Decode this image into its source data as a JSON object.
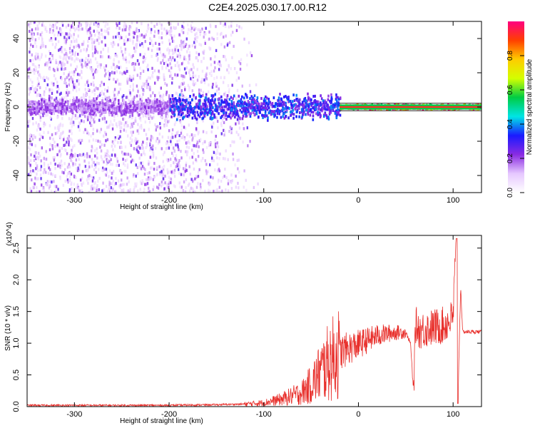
{
  "title": "C2E4.2025.030.17.00.R12",
  "colors": {
    "snr_line": "#e8302c",
    "axis": "#000000"
  },
  "chart_data": [
    {
      "type": "heatmap",
      "xlabel": "Height of straight line (km)",
      "ylabel": "Frequency (Hz)",
      "xlim": [
        -350,
        130
      ],
      "ylim": [
        -50,
        50
      ],
      "x_ticks": [
        -300,
        -200,
        -100,
        0,
        100
      ],
      "y_ticks": [
        -40,
        -20,
        0,
        20,
        40
      ],
      "colorbar": {
        "label": "Normalized spectral amplitude",
        "range": [
          0,
          1
        ],
        "ticks": [
          "0.0",
          "0.2",
          "0.4",
          "0.6",
          "0.8"
        ],
        "colormap": [
          "#ffffff",
          "#e6c8ff",
          "#8a2be2",
          "#1a1aff",
          "#00e5e5",
          "#00cc44",
          "#d4ff00",
          "#ffcc00",
          "#ff4000",
          "#ff0080"
        ]
      },
      "bands": [
        {
          "x_range": [
            -350,
            -105
          ],
          "y_center": 0,
          "y_spread": 50,
          "level": "scattered noise"
        },
        {
          "x_range": [
            -350,
            -200
          ],
          "y_center": 0,
          "y_spread": 5,
          "level": 0.2
        },
        {
          "x_range": [
            -200,
            -20
          ],
          "y_center": 0,
          "y_spread": 8,
          "level": 0.35
        },
        {
          "x_range": [
            -20,
            130
          ],
          "y_center": 0,
          "y_spread": 1.5,
          "level": 0.95
        }
      ]
    },
    {
      "type": "line",
      "xlabel": "Height of straight line (km)",
      "ylabel": "SNR (10 * v/v)",
      "y_multiplier": "(x10^4)",
      "xlim": [
        -350,
        130
      ],
      "ylim": [
        0,
        2.7
      ],
      "x_ticks": [
        -300,
        -200,
        -100,
        0,
        100
      ],
      "y_ticks": [
        "0.0",
        "0.5",
        "1.0",
        "1.5",
        "2.0",
        "2.5"
      ],
      "series": [
        {
          "x": [
            -350,
            -300,
            -250,
            -200,
            -150,
            -120,
            -100,
            -80,
            -60,
            -50,
            -40,
            -30,
            -20,
            -10,
            0,
            10,
            20,
            30,
            40,
            50,
            55,
            58,
            60,
            65,
            70,
            80,
            90,
            100,
            103,
            105,
            108,
            110,
            120,
            130
          ],
          "y": [
            0.02,
            0.02,
            0.02,
            0.02,
            0.03,
            0.04,
            0.06,
            0.12,
            0.22,
            0.35,
            0.55,
            0.72,
            0.85,
            0.92,
            0.98,
            1.05,
            1.12,
            1.15,
            1.17,
            1.17,
            1.0,
            0.3,
            1.3,
            1.2,
            1.22,
            1.25,
            1.28,
            1.4,
            2.6,
            0.05,
            1.9,
            1.18,
            1.18,
            1.18
          ]
        }
      ]
    }
  ]
}
